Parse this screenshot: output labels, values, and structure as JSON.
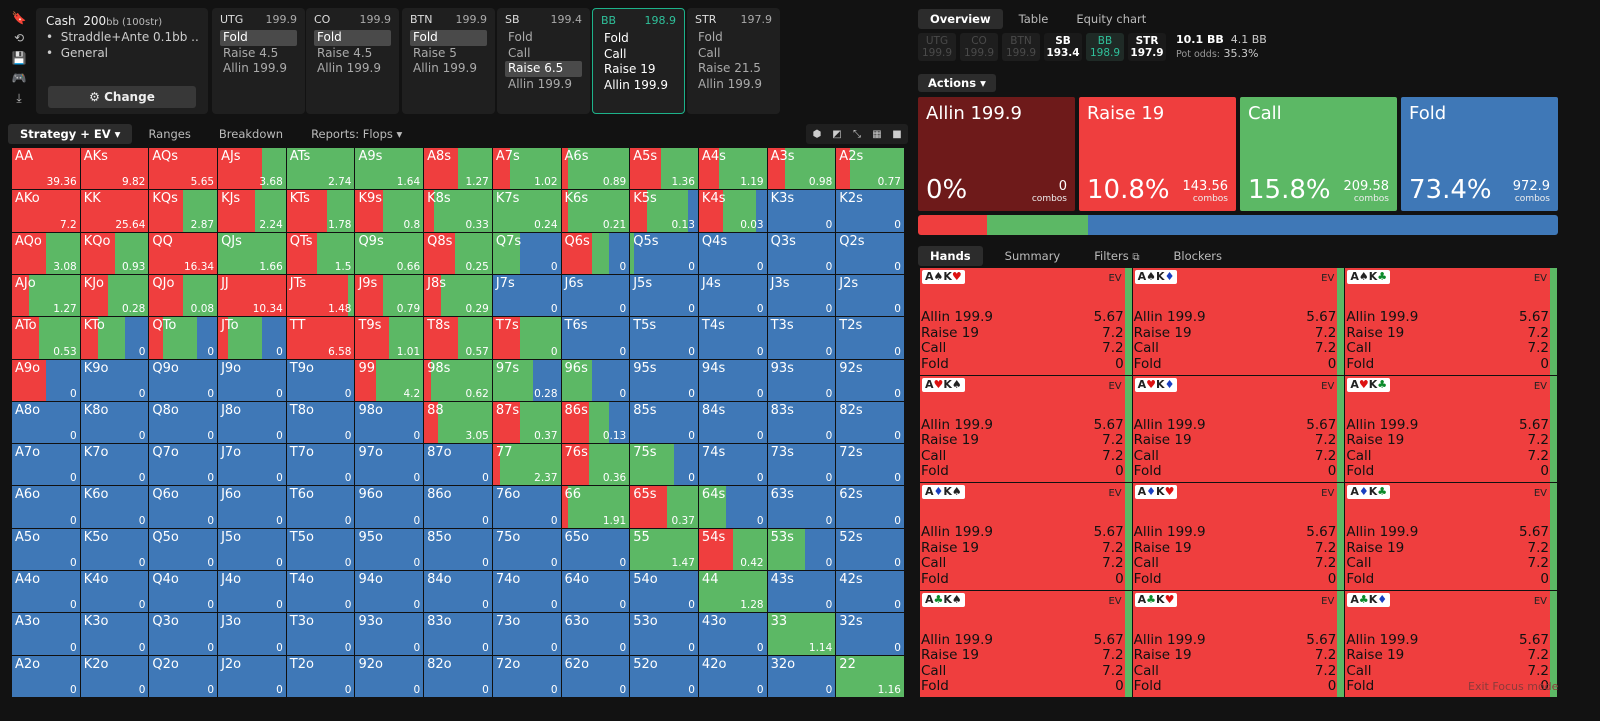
{
  "sidebar_icons": [
    "bookmark-icon",
    "history-icon",
    "save-icon",
    "gamepad-icon",
    "export-icon"
  ],
  "cash": {
    "title": "Cash",
    "stack": "200",
    "stack_unit": "bb (100str)",
    "bullets": [
      "Straddle+Ante 0.1bb ...",
      "General"
    ],
    "change_label": "Change"
  },
  "positions": [
    {
      "name": "UTG",
      "stack": "199.9",
      "actions": [
        "Fold",
        "Raise 4.5",
        "Allin 199.9"
      ],
      "selected": 0,
      "active": false
    },
    {
      "name": "CO",
      "stack": "199.9",
      "actions": [
        "Fold",
        "Raise 4.5",
        "Allin 199.9"
      ],
      "selected": 0,
      "active": false
    },
    {
      "name": "BTN",
      "stack": "199.9",
      "actions": [
        "Fold",
        "Raise 5",
        "Allin 199.9"
      ],
      "selected": 0,
      "active": false
    },
    {
      "name": "SB",
      "stack": "199.4",
      "actions": [
        "Fold",
        "Call",
        "Raise 6.5",
        "Allin 199.9"
      ],
      "selected": 2,
      "active": false
    },
    {
      "name": "BB",
      "stack": "198.9",
      "actions": [
        "Fold",
        "Call",
        "Raise 19",
        "Allin 199.9"
      ],
      "selected": -1,
      "active": true
    },
    {
      "name": "STR",
      "stack": "197.9",
      "actions": [
        "Fold",
        "Call",
        "Raise 21.5",
        "Allin 199.9"
      ],
      "selected": -1,
      "active": false
    }
  ],
  "left_tabs": [
    {
      "label": "Strategy + EV",
      "active": true,
      "dropdown": true
    },
    {
      "label": "Ranges",
      "active": false,
      "dropdown": false
    },
    {
      "label": "Breakdown",
      "active": false,
      "dropdown": false
    },
    {
      "label": "Reports: Flops",
      "active": false,
      "dropdown": true
    }
  ],
  "view_icons": [
    "cube-icon",
    "contrast-icon",
    "compress-icon",
    "grid-icon",
    "square-icon"
  ],
  "colors": {
    "allin": "#a32222",
    "raise": "#ef3e3e",
    "call": "#5cb865",
    "fold": "#3f78b7",
    "accent": "#2fc09a"
  },
  "matrix": [
    [
      [
        "AA",
        100,
        0,
        0,
        "39.36"
      ],
      [
        "AKs",
        100,
        0,
        0,
        "9.82"
      ],
      [
        "AQs",
        100,
        0,
        0,
        "5.65"
      ],
      [
        "AJs",
        65,
        35,
        0,
        "3.68"
      ],
      [
        "ATs",
        0,
        100,
        0,
        "2.74"
      ],
      [
        "A9s",
        0,
        100,
        0,
        "1.64"
      ],
      [
        "A8s",
        50,
        50,
        0,
        "1.27"
      ],
      [
        "A7s",
        25,
        75,
        0,
        "1.02"
      ],
      [
        "A6s",
        10,
        90,
        0,
        "0.89"
      ],
      [
        "A5s",
        45,
        55,
        0,
        "1.36"
      ],
      [
        "A4s",
        30,
        70,
        0,
        "1.19"
      ],
      [
        "A3s",
        25,
        75,
        0,
        "0.98"
      ],
      [
        "A2s",
        20,
        80,
        0,
        "0.77"
      ]
    ],
    [
      [
        "AKo",
        100,
        0,
        0,
        "7.2"
      ],
      [
        "KK",
        100,
        0,
        0,
        "25.64"
      ],
      [
        "KQs",
        50,
        50,
        0,
        "2.87"
      ],
      [
        "KJs",
        55,
        45,
        0,
        "2.24"
      ],
      [
        "KTs",
        60,
        40,
        0,
        "1.78"
      ],
      [
        "K9s",
        40,
        60,
        0,
        "0.8"
      ],
      [
        "K8s",
        15,
        85,
        0,
        "0.33"
      ],
      [
        "K7s",
        0,
        100,
        0,
        "0.24"
      ],
      [
        "K6s",
        10,
        90,
        0,
        "0.21"
      ],
      [
        "K5s",
        25,
        60,
        15,
        "0.13"
      ],
      [
        "K4s",
        35,
        50,
        15,
        "0.03"
      ],
      [
        "K3s",
        0,
        0,
        100,
        "0"
      ],
      [
        "K2s",
        0,
        0,
        100,
        "0"
      ]
    ],
    [
      [
        "AQo",
        50,
        50,
        0,
        "3.08"
      ],
      [
        "KQo",
        50,
        50,
        0,
        "0.93"
      ],
      [
        "QQ",
        100,
        0,
        0,
        "16.34"
      ],
      [
        "QJs",
        0,
        100,
        0,
        "1.66"
      ],
      [
        "QTs",
        45,
        55,
        0,
        "1.5"
      ],
      [
        "Q9s",
        0,
        100,
        0,
        "0.66"
      ],
      [
        "Q8s",
        45,
        55,
        0,
        "0.25"
      ],
      [
        "Q7s",
        0,
        40,
        60,
        "0"
      ],
      [
        "Q6s",
        45,
        25,
        30,
        "0"
      ],
      [
        "Q5s",
        0,
        5,
        95,
        "0"
      ],
      [
        "Q4s",
        0,
        0,
        100,
        "0"
      ],
      [
        "Q3s",
        0,
        0,
        100,
        "0"
      ],
      [
        "Q2s",
        0,
        0,
        100,
        "0"
      ]
    ],
    [
      [
        "AJo",
        25,
        75,
        0,
        "1.27"
      ],
      [
        "KJo",
        40,
        60,
        0,
        "0.28"
      ],
      [
        "QJo",
        50,
        50,
        0,
        "0.08"
      ],
      [
        "JJ",
        100,
        0,
        0,
        "10.34"
      ],
      [
        "JTs",
        90,
        10,
        0,
        "1.48"
      ],
      [
        "J9s",
        40,
        60,
        0,
        "0.79"
      ],
      [
        "J8s",
        25,
        75,
        0,
        "0.29"
      ],
      [
        "J7s",
        0,
        0,
        100,
        "0"
      ],
      [
        "J6s",
        0,
        0,
        100,
        "0"
      ],
      [
        "J5s",
        0,
        0,
        100,
        "0"
      ],
      [
        "J4s",
        0,
        0,
        100,
        "0"
      ],
      [
        "J3s",
        0,
        0,
        100,
        "0"
      ],
      [
        "J2s",
        0,
        0,
        100,
        "0"
      ]
    ],
    [
      [
        "ATo",
        40,
        60,
        0,
        "0.53"
      ],
      [
        "KTo",
        25,
        40,
        35,
        "0"
      ],
      [
        "QTo",
        20,
        50,
        30,
        "0"
      ],
      [
        "JTo",
        15,
        50,
        35,
        "0"
      ],
      [
        "TT",
        100,
        0,
        0,
        "6.58"
      ],
      [
        "T9s",
        50,
        50,
        0,
        "1.01"
      ],
      [
        "T8s",
        50,
        50,
        0,
        "0.57"
      ],
      [
        "T7s",
        40,
        60,
        0,
        "0"
      ],
      [
        "T6s",
        0,
        0,
        100,
        "0"
      ],
      [
        "T5s",
        0,
        0,
        100,
        "0"
      ],
      [
        "T4s",
        0,
        0,
        100,
        "0"
      ],
      [
        "T3s",
        0,
        0,
        100,
        "0"
      ],
      [
        "T2s",
        0,
        0,
        100,
        "0"
      ]
    ],
    [
      [
        "A9o",
        50,
        0,
        50,
        "0"
      ],
      [
        "K9o",
        0,
        0,
        100,
        "0"
      ],
      [
        "Q9o",
        0,
        0,
        100,
        "0"
      ],
      [
        "J9o",
        0,
        0,
        100,
        "0"
      ],
      [
        "T9o",
        0,
        0,
        100,
        "0"
      ],
      [
        "99",
        30,
        70,
        0,
        "4.2"
      ],
      [
        "98s",
        10,
        90,
        0,
        "0.62"
      ],
      [
        "97s",
        0,
        60,
        40,
        "0.28"
      ],
      [
        "96s",
        0,
        45,
        55,
        "0"
      ],
      [
        "95s",
        0,
        0,
        100,
        "0"
      ],
      [
        "94s",
        0,
        0,
        100,
        "0"
      ],
      [
        "93s",
        0,
        0,
        100,
        "0"
      ],
      [
        "92s",
        0,
        0,
        100,
        "0"
      ]
    ],
    [
      [
        "A8o",
        0,
        0,
        100,
        "0"
      ],
      [
        "K8o",
        0,
        0,
        100,
        "0"
      ],
      [
        "Q8o",
        0,
        0,
        100,
        "0"
      ],
      [
        "J8o",
        0,
        0,
        100,
        "0"
      ],
      [
        "T8o",
        0,
        0,
        100,
        "0"
      ],
      [
        "98o",
        0,
        0,
        100,
        "0"
      ],
      [
        "88",
        20,
        80,
        0,
        "3.05"
      ],
      [
        "87s",
        40,
        60,
        0,
        "0.37"
      ],
      [
        "86s",
        40,
        30,
        30,
        "0.13"
      ],
      [
        "85s",
        0,
        0,
        100,
        "0"
      ],
      [
        "84s",
        0,
        0,
        100,
        "0"
      ],
      [
        "83s",
        0,
        0,
        100,
        "0"
      ],
      [
        "82s",
        0,
        0,
        100,
        "0"
      ]
    ],
    [
      [
        "A7o",
        0,
        0,
        100,
        "0"
      ],
      [
        "K7o",
        0,
        0,
        100,
        "0"
      ],
      [
        "Q7o",
        0,
        0,
        100,
        "0"
      ],
      [
        "J7o",
        0,
        0,
        100,
        "0"
      ],
      [
        "T7o",
        0,
        0,
        100,
        "0"
      ],
      [
        "97o",
        0,
        0,
        100,
        "0"
      ],
      [
        "87o",
        0,
        0,
        100,
        "0"
      ],
      [
        "77",
        10,
        90,
        0,
        "2.37"
      ],
      [
        "76s",
        40,
        60,
        0,
        "0.36"
      ],
      [
        "75s",
        0,
        65,
        35,
        "0"
      ],
      [
        "74s",
        0,
        0,
        100,
        "0"
      ],
      [
        "73s",
        0,
        0,
        100,
        "0"
      ],
      [
        "72s",
        0,
        0,
        100,
        "0"
      ]
    ],
    [
      [
        "A6o",
        0,
        0,
        100,
        "0"
      ],
      [
        "K6o",
        0,
        0,
        100,
        "0"
      ],
      [
        "Q6o",
        0,
        0,
        100,
        "0"
      ],
      [
        "J6o",
        0,
        0,
        100,
        "0"
      ],
      [
        "T6o",
        0,
        0,
        100,
        "0"
      ],
      [
        "96o",
        0,
        0,
        100,
        "0"
      ],
      [
        "86o",
        0,
        0,
        100,
        "0"
      ],
      [
        "76o",
        0,
        0,
        100,
        "0"
      ],
      [
        "66",
        10,
        90,
        0,
        "1.91"
      ],
      [
        "65s",
        55,
        45,
        0,
        "0.37"
      ],
      [
        "64s",
        0,
        40,
        60,
        "0"
      ],
      [
        "63s",
        0,
        0,
        100,
        "0"
      ],
      [
        "62s",
        0,
        0,
        100,
        "0"
      ]
    ],
    [
      [
        "A5o",
        0,
        0,
        100,
        "0"
      ],
      [
        "K5o",
        0,
        0,
        100,
        "0"
      ],
      [
        "Q5o",
        0,
        0,
        100,
        "0"
      ],
      [
        "J5o",
        0,
        0,
        100,
        "0"
      ],
      [
        "T5o",
        0,
        0,
        100,
        "0"
      ],
      [
        "95o",
        0,
        0,
        100,
        "0"
      ],
      [
        "85o",
        0,
        0,
        100,
        "0"
      ],
      [
        "75o",
        0,
        0,
        100,
        "0"
      ],
      [
        "65o",
        0,
        0,
        100,
        "0"
      ],
      [
        "55",
        0,
        100,
        0,
        "1.47"
      ],
      [
        "54s",
        50,
        50,
        0,
        "0.42"
      ],
      [
        "53s",
        0,
        55,
        45,
        "0"
      ],
      [
        "52s",
        0,
        0,
        100,
        "0"
      ]
    ],
    [
      [
        "A4o",
        0,
        0,
        100,
        "0"
      ],
      [
        "K4o",
        0,
        0,
        100,
        "0"
      ],
      [
        "Q4o",
        0,
        0,
        100,
        "0"
      ],
      [
        "J4o",
        0,
        0,
        100,
        "0"
      ],
      [
        "T4o",
        0,
        0,
        100,
        "0"
      ],
      [
        "94o",
        0,
        0,
        100,
        "0"
      ],
      [
        "84o",
        0,
        0,
        100,
        "0"
      ],
      [
        "74o",
        0,
        0,
        100,
        "0"
      ],
      [
        "64o",
        0,
        0,
        100,
        "0"
      ],
      [
        "54o",
        0,
        0,
        100,
        "0"
      ],
      [
        "44",
        0,
        100,
        0,
        "1.28"
      ],
      [
        "43s",
        0,
        0,
        100,
        "0"
      ],
      [
        "42s",
        0,
        0,
        100,
        "0"
      ]
    ],
    [
      [
        "A3o",
        0,
        0,
        100,
        "0"
      ],
      [
        "K3o",
        0,
        0,
        100,
        "0"
      ],
      [
        "Q3o",
        0,
        0,
        100,
        "0"
      ],
      [
        "J3o",
        0,
        0,
        100,
        "0"
      ],
      [
        "T3o",
        0,
        0,
        100,
        "0"
      ],
      [
        "93o",
        0,
        0,
        100,
        "0"
      ],
      [
        "83o",
        0,
        0,
        100,
        "0"
      ],
      [
        "73o",
        0,
        0,
        100,
        "0"
      ],
      [
        "63o",
        0,
        0,
        100,
        "0"
      ],
      [
        "53o",
        0,
        0,
        100,
        "0"
      ],
      [
        "43o",
        0,
        0,
        100,
        "0"
      ],
      [
        "33",
        0,
        100,
        0,
        "1.14"
      ],
      [
        "32s",
        0,
        0,
        100,
        "0"
      ]
    ],
    [
      [
        "A2o",
        0,
        0,
        100,
        "0"
      ],
      [
        "K2o",
        0,
        0,
        100,
        "0"
      ],
      [
        "Q2o",
        0,
        0,
        100,
        "0"
      ],
      [
        "J2o",
        0,
        0,
        100,
        "0"
      ],
      [
        "T2o",
        0,
        0,
        100,
        "0"
      ],
      [
        "92o",
        0,
        0,
        100,
        "0"
      ],
      [
        "82o",
        0,
        0,
        100,
        "0"
      ],
      [
        "72o",
        0,
        0,
        100,
        "0"
      ],
      [
        "62o",
        0,
        0,
        100,
        "0"
      ],
      [
        "52o",
        0,
        0,
        100,
        "0"
      ],
      [
        "42o",
        0,
        0,
        100,
        "0"
      ],
      [
        "32o",
        0,
        0,
        100,
        "0"
      ],
      [
        "22",
        0,
        100,
        0,
        "1.16"
      ]
    ]
  ],
  "right_tabs": [
    {
      "label": "Overview",
      "active": true
    },
    {
      "label": "Table",
      "active": false
    },
    {
      "label": "Equity chart",
      "active": false
    }
  ],
  "pos_chips": [
    {
      "name": "UTG",
      "stack": "199.9",
      "style": "dim"
    },
    {
      "name": "CO",
      "stack": "199.9",
      "style": "dim"
    },
    {
      "name": "BTN",
      "stack": "199.9",
      "style": "dim"
    },
    {
      "name": "SB",
      "stack": "193.4",
      "style": "hl"
    },
    {
      "name": "BB",
      "stack": "198.9",
      "style": "bb"
    },
    {
      "name": "STR",
      "stack": "197.9",
      "style": "hl"
    }
  ],
  "pot": {
    "pot": "10.1 BB",
    "to_call": "4.1 BB",
    "odds_label": "Pot odds:",
    "odds": "35.3%"
  },
  "actions_header": "Actions",
  "action_cards": [
    {
      "name": "Allin 199.9",
      "pct": "0%",
      "combos": "0",
      "combos_label": "combos",
      "color": "#6e1a1a"
    },
    {
      "name": "Raise 19",
      "pct": "10.8%",
      "combos": "143.56",
      "combos_label": "combos",
      "color": "#ef3e3e"
    },
    {
      "name": "Call",
      "pct": "15.8%",
      "combos": "209.58",
      "combos_label": "combos",
      "color": "#5cb865"
    },
    {
      "name": "Fold",
      "pct": "73.4%",
      "combos": "972.9",
      "combos_label": "combos",
      "color": "#3f78b7"
    }
  ],
  "freq_bar": [
    {
      "value": 10.8,
      "color": "#ef3e3e"
    },
    {
      "value": 15.8,
      "color": "#5cb865"
    },
    {
      "value": 73.4,
      "color": "#3f78b7"
    }
  ],
  "hand_tabs": [
    {
      "label": "Hands",
      "active": true
    },
    {
      "label": "Summary",
      "active": false
    },
    {
      "label": "Filters",
      "active": false
    },
    {
      "label": "Blockers",
      "active": false
    }
  ],
  "hands": [
    {
      "r1": "A",
      "s1": "♠",
      "c1": "k",
      "r2": "K",
      "s2": "♥",
      "c2": "r"
    },
    {
      "r1": "A",
      "s1": "♠",
      "c1": "k",
      "r2": "K",
      "s2": "♦",
      "c2": "b"
    },
    {
      "r1": "A",
      "s1": "♠",
      "c1": "k",
      "r2": "K",
      "s2": "♣",
      "c2": "g"
    },
    {
      "r1": "A",
      "s1": "♥",
      "c1": "r",
      "r2": "K",
      "s2": "♠",
      "c2": "k"
    },
    {
      "r1": "A",
      "s1": "♥",
      "c1": "r",
      "r2": "K",
      "s2": "♦",
      "c2": "b"
    },
    {
      "r1": "A",
      "s1": "♥",
      "c1": "r",
      "r2": "K",
      "s2": "♣",
      "c2": "g"
    },
    {
      "r1": "A",
      "s1": "♦",
      "c1": "b",
      "r2": "K",
      "s2": "♠",
      "c2": "k"
    },
    {
      "r1": "A",
      "s1": "♦",
      "c1": "b",
      "r2": "K",
      "s2": "♥",
      "c2": "r"
    },
    {
      "r1": "A",
      "s1": "♦",
      "c1": "b",
      "r2": "K",
      "s2": "♣",
      "c2": "g"
    },
    {
      "r1": "A",
      "s1": "♣",
      "c1": "g",
      "r2": "K",
      "s2": "♠",
      "c2": "k"
    },
    {
      "r1": "A",
      "s1": "♣",
      "c1": "g",
      "r2": "K",
      "s2": "♥",
      "c2": "r"
    },
    {
      "r1": "A",
      "s1": "♣",
      "c1": "g",
      "r2": "K",
      "s2": "♦",
      "c2": "b"
    }
  ],
  "hand_ev_label": "EV",
  "hand_rows": [
    [
      "Allin 199.9",
      "5.67"
    ],
    [
      "Raise 19",
      "7.2"
    ],
    [
      "Call",
      "7.2"
    ],
    [
      "Fold",
      "0"
    ]
  ],
  "exit_focus": "Exit Focus mode"
}
